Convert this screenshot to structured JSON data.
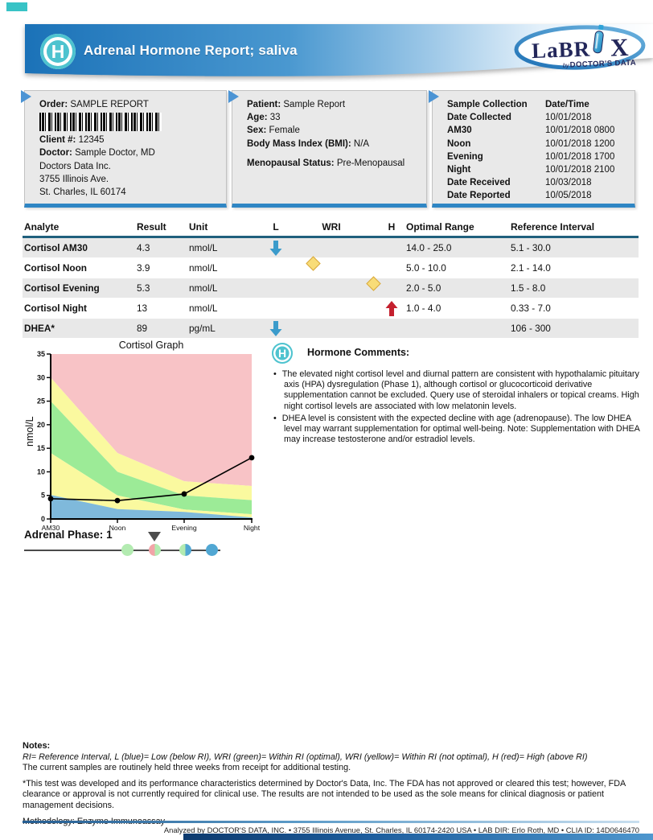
{
  "header": {
    "title": "Adrenal Hormone Report; saliva",
    "badge_letter": "H",
    "logo": {
      "word_left": "LaBR",
      "word_right": "X",
      "by": "by",
      "byline": "DOCTOR'S DATA"
    },
    "band_color": "#1b72b8",
    "badge_color": "#4ec3cf"
  },
  "order_box": {
    "order_label": "Order:",
    "order_value": "SAMPLE REPORT",
    "client_label": "Client #:",
    "client_value": "12345",
    "doctor_label": "Doctor:",
    "doctor_value": "Sample Doctor, MD",
    "address_lines": [
      "Doctors Data Inc.",
      "3755 Illinois Ave.",
      "St. Charles, IL 60174"
    ]
  },
  "patient_box": {
    "rows": [
      {
        "label": "Patient:",
        "value": "Sample Report"
      },
      {
        "label": "Age:",
        "value": "33"
      },
      {
        "label": "Sex:",
        "value": "Female"
      },
      {
        "label": "Body Mass Index (BMI):",
        "value": "N/A"
      },
      {
        "label": "Menopausal Status:",
        "value": "Pre-Menopausal",
        "spacer_before": true
      }
    ]
  },
  "collection_box": {
    "header": {
      "label": "Sample Collection",
      "value": "Date/Time"
    },
    "rows": [
      {
        "label": "Date Collected",
        "value": "10/01/2018"
      },
      {
        "label": "AM30",
        "value": "10/01/2018 0800"
      },
      {
        "label": "Noon",
        "value": "10/01/2018 1200"
      },
      {
        "label": "Evening",
        "value": "10/01/2018 1700"
      },
      {
        "label": "Night",
        "value": "10/01/2018 2100"
      },
      {
        "label": "Date Received",
        "value": "10/03/2018"
      },
      {
        "label": "Date Reported",
        "value": "10/05/2018"
      }
    ]
  },
  "results_table": {
    "headers": {
      "analyte": "Analyte",
      "result": "Result",
      "unit": "Unit",
      "low": "L",
      "wri": "WRI",
      "high": "H",
      "optimal": "Optimal Range",
      "reference": "Reference Interval"
    },
    "marker_colors": {
      "low_arrow": "#3b9bcb",
      "high_arrow": "#c4202e",
      "diamond": "#f8dc78"
    },
    "rows": [
      {
        "analyte": "Cortisol AM30",
        "result": "4.3",
        "unit": "nmol/L",
        "marker": "low-arrow",
        "marker_pct": 0,
        "optimal": "14.0 - 25.0",
        "reference": "5.1 - 30.0",
        "shaded": true
      },
      {
        "analyte": "Cortisol Noon",
        "result": "3.9",
        "unit": "nmol/L",
        "marker": "yellow-diamond",
        "marker_pct": 28,
        "optimal": "5.0 - 10.0",
        "reference": "2.1 - 14.0",
        "shaded": false
      },
      {
        "analyte": "Cortisol Evening",
        "result": "5.3",
        "unit": "nmol/L",
        "marker": "yellow-diamond",
        "marker_pct": 80,
        "optimal": "2.0 - 5.0",
        "reference": "1.5 - 8.0",
        "shaded": true
      },
      {
        "analyte": "Cortisol Night",
        "result": "13",
        "unit": "nmol/L",
        "marker": "high-arrow",
        "marker_pct": 100,
        "optimal": "1.0 - 4.0",
        "reference": "0.33 - 7.0",
        "shaded": false
      },
      {
        "analyte": "DHEA*",
        "result": "89",
        "unit": "pg/mL",
        "marker": "low-arrow",
        "marker_pct": 0,
        "optimal": "",
        "reference": "106 - 300",
        "shaded": true
      }
    ]
  },
  "chart_data": {
    "type": "area",
    "title": "Cortisol Graph",
    "ylabel": "nmol/L",
    "ylim": [
      0,
      35
    ],
    "yticks": [
      0,
      5,
      10,
      15,
      20,
      25,
      30,
      35
    ],
    "categories": [
      "AM30",
      "Noon",
      "Evening",
      "Night"
    ],
    "series": [
      {
        "name": "Cortisol (nmol/L)",
        "values": [
          4.3,
          3.9,
          5.3,
          13
        ]
      }
    ],
    "zones": {
      "low_top": [
        5.1,
        2.1,
        1.5,
        0.33
      ],
      "optimal_low": [
        14,
        5,
        2,
        1
      ],
      "optimal_high": [
        25,
        10,
        5,
        4
      ],
      "ri_high": [
        30,
        14,
        8,
        7
      ]
    },
    "zone_colors": {
      "low": "#7fb9db",
      "suboptimal": "#faf99f",
      "optimal": "#9ceb97",
      "high": "#f8c3c6"
    },
    "line_color": "#000000",
    "grid": false,
    "legend": "none"
  },
  "adrenal_phase": {
    "label": "Adrenal Phase:",
    "value": "1",
    "stops": [
      {
        "name": "phase-0",
        "left_color": "#b3ebb1",
        "right_color": "#b3ebb1",
        "marker": false
      },
      {
        "name": "phase-1",
        "left_color": "#f2a4a8",
        "right_color": "#b3ebb1",
        "marker": true
      },
      {
        "name": "phase-2",
        "left_color": "#b3ebb1",
        "right_color": "#51a7d3",
        "marker": false
      },
      {
        "name": "phase-3",
        "left_color": "#51a7d3",
        "right_color": "#51a7d3",
        "marker": false
      }
    ]
  },
  "comments": {
    "badge_letter": "H",
    "title": "Hormone Comments:",
    "bullets": [
      "The elevated night cortisol level and diurnal pattern are consistent with hypothalamic pituitary axis (HPA) dysregulation (Phase 1), although cortisol or glucocorticoid derivative supplementation cannot be excluded. Query use of steroidal inhalers or topical creams. High night cortisol levels are associated with low melatonin levels.",
      "DHEA level is consistent with the expected decline with age (adrenopause). The low DHEA level may warrant supplementation for optimal well-being. Note: Supplementation with DHEA may increase testosterone and/or estradiol levels."
    ]
  },
  "notes": {
    "title": "Notes:",
    "legend": "RI= Reference Interval, L (blue)= Low (below RI), WRI (green)= Within RI (optimal), WRI (yellow)= Within RI (not optimal), H (red)= High (above RI)",
    "holding": "The current samples are routinely held three weeks from receipt for additional testing.",
    "fda": "*This test was developed and its performance characteristics determined by Doctor's Data, Inc. The FDA has not approved or cleared this test; however, FDA clearance or approval is not currently required for clinical use. The results are not intended to be used as the sole means for clinical diagnosis or patient management decisions.",
    "methodology": "Methodology: Enzyme Immunoassay"
  },
  "footer": {
    "text": "Analyzed by DOCTOR'S DATA, INC. • 3755 Illinois Avenue, St. Charles, IL 60174-2420 USA • LAB DIR: Erlo Roth, MD • CLIA ID: 14D0646470"
  }
}
